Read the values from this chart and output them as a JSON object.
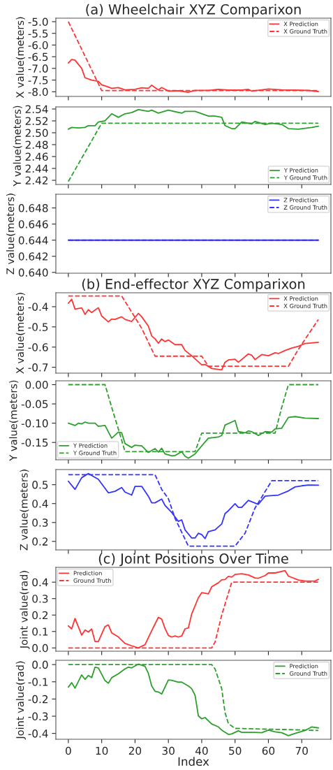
{
  "chart_data": [
    {
      "type": "line",
      "title": "(a) Wheelchair XYZ Comparixon",
      "ylabel": "X value(meters)",
      "xlim": [
        -3.75,
        78.75
      ],
      "xticks": [
        0,
        10,
        20,
        30,
        40,
        50,
        60,
        70
      ],
      "ylim": [
        -8.2,
        -4.85
      ],
      "yticks": [
        {
          "value": -5,
          "label": "-5.0"
        },
        -5.5,
        {
          "value": -6,
          "label": "-6.0"
        },
        -6.5,
        {
          "value": -7,
          "label": "-7.0"
        },
        -7.5,
        {
          "value": -8,
          "label": "-8.0"
        }
      ],
      "tick_labels": "y",
      "legend": "top right",
      "series": [
        {
          "name": "X Prediction",
          "color": "#ff3333",
          "line_style": "solid",
          "x": [
            0,
            1,
            2,
            4,
            5,
            7,
            9,
            10,
            11,
            13,
            15,
            17,
            20,
            22,
            24,
            25,
            27,
            28,
            30,
            33,
            36,
            38,
            42,
            45,
            48,
            52,
            54,
            55,
            58,
            60,
            64,
            68,
            72,
            75
          ],
          "values": [
            -6.77,
            -6.62,
            -6.65,
            -7.0,
            -7.4,
            -7.5,
            -7.55,
            -7.7,
            -7.75,
            -7.85,
            -7.82,
            -7.92,
            -7.9,
            -7.83,
            -7.85,
            -7.72,
            -7.92,
            -7.82,
            -7.97,
            -7.96,
            -8.02,
            -7.94,
            -7.94,
            -7.9,
            -7.93,
            -7.93,
            -7.9,
            -7.97,
            -7.92,
            -7.88,
            -7.92,
            -7.93,
            -7.94,
            -7.99
          ]
        },
        {
          "name": "X Ground Truth",
          "color": "#ff3333",
          "line_style": "dashed",
          "x": [
            0,
            10,
            75
          ],
          "values": [
            -5.0,
            -7.95,
            -7.95
          ]
        }
      ]
    },
    {
      "type": "line",
      "ylabel": "Y value(meters)",
      "xlim": [
        -3.75,
        78.75
      ],
      "xticks": [
        0,
        10,
        20,
        30,
        40,
        50,
        60,
        70
      ],
      "ylim": [
        2.413,
        2.5435
      ],
      "yticks": [
        2.42,
        2.44,
        2.46,
        2.48,
        {
          "value": 2.5,
          "label": "2.50"
        },
        2.52,
        2.54
      ],
      "tick_labels": "y",
      "legend": "bottom right",
      "series": [
        {
          "name": "Y Prediction",
          "color": "#2ca02c",
          "line_style": "solid",
          "x": [
            0,
            1,
            3,
            5,
            6,
            8,
            9,
            11,
            13,
            15,
            17,
            19,
            21,
            24,
            25,
            27,
            30,
            34,
            35,
            38,
            42,
            44,
            46,
            47,
            49,
            50,
            52,
            55,
            56,
            59,
            61,
            64,
            66,
            69,
            73,
            75
          ],
          "values": [
            2.506,
            2.509,
            2.508,
            2.509,
            2.512,
            2.512,
            2.518,
            2.52,
            2.532,
            2.526,
            2.532,
            2.534,
            2.539,
            2.536,
            2.538,
            2.533,
            2.538,
            2.533,
            2.536,
            2.536,
            2.528,
            2.528,
            2.526,
            2.512,
            2.507,
            2.507,
            2.518,
            2.515,
            2.519,
            2.514,
            2.516,
            2.514,
            2.507,
            2.506,
            2.509,
            2.511
          ]
        },
        {
          "name": "Y Ground Truth",
          "color": "#2ca02c",
          "line_style": "dashed",
          "x": [
            0,
            10,
            75
          ],
          "values": [
            2.418,
            2.516,
            2.516
          ]
        }
      ]
    },
    {
      "type": "line",
      "ylabel": "Z value(meters)",
      "xlim": [
        -3.75,
        78.75
      ],
      "xticks": [
        0,
        10,
        20,
        30,
        40,
        50,
        60,
        70
      ],
      "ylim": [
        0.6399,
        0.6497
      ],
      "yticks": [
        {
          "value": 0.64,
          "label": "0.640"
        },
        0.642,
        0.644,
        0.646,
        0.648
      ],
      "tick_labels": "y",
      "legend": "top right",
      "series": [
        {
          "name": "Z Prediction",
          "color": "#3333ff",
          "line_style": "solid",
          "x": [
            0,
            75
          ],
          "values": [
            0.644,
            0.644
          ]
        },
        {
          "name": "Z Ground Truth",
          "color": "#3333ff",
          "line_style": "dashed",
          "x": [
            0,
            75
          ],
          "values": [
            0.644,
            0.644
          ]
        }
      ]
    },
    {
      "type": "line",
      "title": "(b) End-effector XYZ Comparixon",
      "ylabel": "X value(meters)",
      "xlim": [
        -3.75,
        78.75
      ],
      "xticks": [
        0,
        10,
        20,
        30,
        40,
        50,
        60,
        70
      ],
      "ylim": [
        -0.729,
        -0.331
      ],
      "yticks": [
        -0.4,
        -0.5,
        -0.6,
        -0.7
      ],
      "tick_labels": "y",
      "legend": "top right",
      "series": [
        {
          "name": "X Prediction",
          "color": "#ff3333",
          "line_style": "solid",
          "x": [
            0,
            1,
            2,
            4,
            5,
            6,
            7,
            9,
            10,
            12,
            13,
            14,
            16,
            17,
            19,
            21,
            22,
            24,
            25,
            26,
            27,
            28,
            29,
            30,
            32,
            34,
            35,
            37,
            40,
            41,
            43,
            46,
            47,
            48,
            50,
            51,
            54,
            55,
            56,
            58,
            60,
            62,
            63,
            65,
            67,
            69,
            71,
            75
          ],
          "values": [
            -0.383,
            -0.363,
            -0.412,
            -0.406,
            -0.438,
            -0.415,
            -0.429,
            -0.405,
            -0.446,
            -0.475,
            -0.461,
            -0.463,
            -0.45,
            -0.463,
            -0.473,
            -0.433,
            -0.45,
            -0.496,
            -0.545,
            -0.559,
            -0.581,
            -0.56,
            -0.573,
            -0.565,
            -0.588,
            -0.588,
            -0.617,
            -0.643,
            -0.688,
            -0.686,
            -0.706,
            -0.713,
            -0.675,
            -0.664,
            -0.66,
            -0.675,
            -0.634,
            -0.64,
            -0.662,
            -0.637,
            -0.643,
            -0.628,
            -0.632,
            -0.617,
            -0.605,
            -0.596,
            -0.582,
            -0.576
          ]
        },
        {
          "name": "X Ground Truth",
          "color": "#ff3333",
          "line_style": "dashed",
          "x": [
            0,
            16,
            19,
            22,
            26,
            40,
            42,
            66,
            69,
            75
          ],
          "values": [
            -0.347,
            -0.347,
            -0.427,
            -0.507,
            -0.645,
            -0.645,
            -0.695,
            -0.695,
            -0.611,
            -0.463
          ]
        }
      ]
    },
    {
      "type": "line",
      "ylabel": "Y value(meters)",
      "xlim": [
        -3.75,
        78.75
      ],
      "xticks": [
        0,
        10,
        20,
        30,
        40,
        50,
        60,
        70
      ],
      "ylim": [
        -0.195,
        0.01
      ],
      "yticks": [
        {
          "value": 0,
          "label": "0.00"
        },
        -0.05,
        {
          "value": -0.1,
          "label": "-0.10"
        },
        -0.15
      ],
      "tick_labels": "y",
      "legend": "bottom left",
      "series": [
        {
          "name": "Y Prediction",
          "color": "#2ca02c",
          "line_style": "solid",
          "x": [
            0,
            2,
            3,
            4,
            5,
            6,
            8,
            9,
            11,
            13,
            15,
            16,
            17,
            19,
            20,
            22,
            24,
            26,
            27,
            28,
            29,
            31,
            32,
            34,
            35,
            36,
            38,
            40,
            42,
            45,
            46,
            47,
            49,
            50,
            51,
            53,
            54,
            55,
            57,
            59,
            61,
            62,
            64,
            66,
            68,
            71,
            75
          ],
          "values": [
            -0.1,
            -0.106,
            -0.1,
            -0.102,
            -0.097,
            -0.1,
            -0.1,
            -0.108,
            -0.106,
            -0.139,
            -0.123,
            -0.125,
            -0.153,
            -0.163,
            -0.157,
            -0.159,
            -0.176,
            -0.166,
            -0.175,
            -0.165,
            -0.18,
            -0.185,
            -0.184,
            -0.174,
            -0.186,
            -0.191,
            -0.18,
            -0.159,
            -0.139,
            -0.136,
            -0.132,
            -0.105,
            -0.097,
            -0.093,
            -0.122,
            -0.125,
            -0.12,
            -0.122,
            -0.132,
            -0.122,
            -0.123,
            -0.115,
            -0.113,
            -0.085,
            -0.083,
            -0.087,
            -0.088
          ]
        },
        {
          "name": "Y Ground Truth",
          "color": "#2ca02c",
          "line_style": "dashed",
          "x": [
            0,
            11,
            13,
            15,
            17,
            38,
            40,
            62,
            64,
            66,
            75
          ],
          "values": [
            0,
            0,
            -0.059,
            -0.115,
            -0.174,
            -0.174,
            -0.126,
            -0.126,
            -0.059,
            0,
            0
          ]
        }
      ]
    },
    {
      "type": "line",
      "ylabel": "Z value(meters)",
      "xlim": [
        -3.75,
        78.75
      ],
      "xticks": [
        0,
        10,
        20,
        30,
        40,
        50,
        60,
        70
      ],
      "ylim": [
        0.155,
        0.58
      ],
      "yticks": [
        0.5,
        0.4,
        0.3,
        0.2
      ],
      "tick_labels": "y",
      "series": [
        {
          "color": "#3333ff",
          "line_style": "solid",
          "x": [
            0,
            2,
            4,
            6,
            9,
            12,
            14,
            16,
            17,
            19,
            20,
            22,
            24,
            25,
            26,
            28,
            29,
            31,
            33,
            34,
            35,
            37,
            38,
            39,
            40,
            41,
            42,
            44,
            46,
            47,
            48,
            50,
            51,
            52,
            54,
            57,
            59,
            60,
            63,
            66,
            68,
            70,
            72,
            75
          ],
          "values": [
            0.518,
            0.475,
            0.537,
            0.559,
            0.528,
            0.457,
            0.465,
            0.485,
            0.461,
            0.445,
            0.491,
            0.491,
            0.439,
            0.404,
            0.404,
            0.424,
            0.39,
            0.353,
            0.306,
            0.314,
            0.261,
            0.218,
            0.218,
            0.243,
            0.236,
            0.215,
            0.252,
            0.261,
            0.292,
            0.347,
            0.362,
            0.399,
            0.38,
            0.38,
            0.417,
            0.396,
            0.439,
            0.441,
            0.445,
            0.467,
            0.488,
            0.494,
            0.498,
            0.497
          ]
        },
        {
          "color": "#3333ff",
          "line_style": "dashed",
          "x": [
            0,
            26,
            28,
            30,
            32,
            36,
            50,
            53,
            56,
            58,
            61,
            75
          ],
          "values": [
            0.553,
            0.553,
            0.475,
            0.426,
            0.322,
            0.175,
            0.175,
            0.243,
            0.377,
            0.434,
            0.521,
            0.521
          ]
        }
      ]
    },
    {
      "type": "line",
      "title": "(c) Joint Positions Over Time",
      "ylabel": "Joint value(rad)",
      "xlim": [
        -3.75,
        78.75
      ],
      "xticks": [
        0,
        10,
        20,
        30,
        40,
        50,
        60,
        70
      ],
      "ylim": [
        -0.02,
        0.49
      ],
      "yticks": [
        {
          "value": 0,
          "label": "0.0"
        },
        0.1,
        0.2,
        0.3,
        0.4
      ],
      "tick_labels": "y",
      "legend": "top left",
      "series": [
        {
          "name": "Prediction",
          "color": "#ff3333",
          "line_style": "solid",
          "x": [
            0,
            1,
            2,
            4,
            5,
            6,
            7,
            8,
            9,
            11,
            12,
            13,
            15,
            17,
            19,
            21,
            23,
            25,
            27,
            28,
            29,
            30,
            31,
            32,
            33,
            34,
            35,
            36,
            37,
            39,
            40,
            42,
            43,
            45,
            46,
            47,
            48,
            49,
            50,
            52,
            54,
            56,
            57,
            59,
            60,
            62,
            65,
            66,
            69,
            71,
            74,
            75
          ],
          "values": [
            0.134,
            0.116,
            0.179,
            0.078,
            0.109,
            0.097,
            0.115,
            0.039,
            0.039,
            0.13,
            0.14,
            0.092,
            0.067,
            0.027,
            0.013,
            0.0,
            0.02,
            0.105,
            0.186,
            0.175,
            0.118,
            0.076,
            0.066,
            0.073,
            0.066,
            0.073,
            0.116,
            0.122,
            0.207,
            0.305,
            0.336,
            0.329,
            0.372,
            0.396,
            0.414,
            0.416,
            0.435,
            0.431,
            0.447,
            0.451,
            0.444,
            0.426,
            0.424,
            0.44,
            0.456,
            0.456,
            0.47,
            0.437,
            0.413,
            0.407,
            0.407,
            0.417
          ]
        },
        {
          "name": "Ground Truth",
          "color": "#ff3333",
          "line_style": "dashed",
          "x": [
            0,
            43,
            44,
            46,
            49,
            75
          ],
          "values": [
            0,
            0,
            0.035,
            0.2,
            0.4,
            0.4
          ]
        }
      ]
    },
    {
      "type": "line",
      "xlabel": "Index",
      "ylabel": "Joint value(rad)",
      "xlim": [
        -3.75,
        78.75
      ],
      "xticks": [
        0,
        10,
        20,
        30,
        40,
        50,
        60,
        70
      ],
      "ylim": [
        -0.434,
        0.025
      ],
      "yticks": [
        {
          "value": 0,
          "label": "0.0"
        },
        -0.1,
        -0.2,
        -0.3,
        -0.4
      ],
      "legend": "top right",
      "series": [
        {
          "name": "Prediction",
          "color": "#2ca02c",
          "line_style": "solid",
          "x": [
            0,
            1,
            2,
            4,
            5,
            6,
            7,
            8,
            9,
            11,
            12,
            13,
            15,
            17,
            18,
            19,
            21,
            23,
            24,
            25,
            26,
            27,
            28,
            30,
            31,
            33,
            34,
            36,
            37,
            38,
            39,
            40,
            41,
            43,
            45,
            46,
            48,
            49,
            51,
            52,
            56,
            58,
            60,
            62,
            64,
            66,
            68,
            71,
            73,
            75
          ],
          "values": [
            -0.131,
            -0.105,
            -0.137,
            -0.06,
            -0.086,
            -0.063,
            -0.076,
            -0.015,
            -0.019,
            -0.093,
            -0.108,
            -0.076,
            -0.053,
            -0.025,
            -0.015,
            -0.019,
            0.003,
            -0.01,
            -0.051,
            -0.124,
            -0.155,
            -0.159,
            -0.171,
            -0.089,
            -0.091,
            -0.102,
            -0.102,
            -0.124,
            -0.14,
            -0.178,
            -0.298,
            -0.315,
            -0.308,
            -0.345,
            -0.362,
            -0.381,
            -0.406,
            -0.403,
            -0.385,
            -0.394,
            -0.394,
            -0.396,
            -0.381,
            -0.391,
            -0.396,
            -0.413,
            -0.4,
            -0.383,
            -0.362,
            -0.368
          ]
        },
        {
          "name": "Ground Truth",
          "color": "#2ca02c",
          "line_style": "dashed",
          "x": [
            0,
            43,
            44,
            46,
            47,
            48,
            50,
            66,
            75
          ],
          "values": [
            0,
            0,
            -0.025,
            -0.14,
            -0.279,
            -0.343,
            -0.371,
            -0.378,
            -0.383
          ]
        }
      ]
    }
  ]
}
